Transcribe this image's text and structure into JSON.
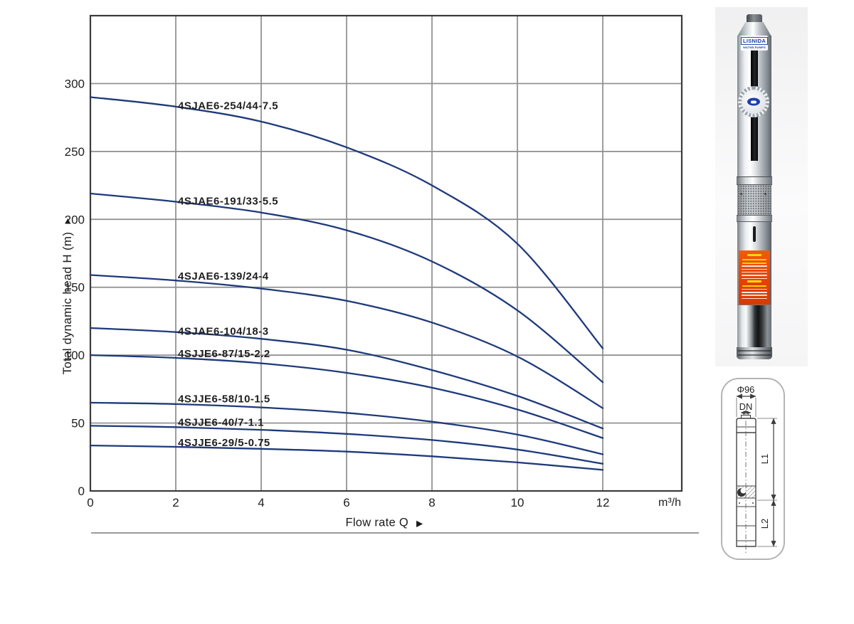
{
  "chart_data": {
    "type": "line",
    "title": "",
    "xlabel": "Flow rate Q",
    "xlabel_arrow": "▶",
    "ylabel": "Total dynamic head H (m)",
    "ylabel_arrow": "▲",
    "x_unit": "m³/h",
    "xlim": [
      0,
      13.85
    ],
    "ylim": [
      0,
      350
    ],
    "xticks": [
      0,
      2,
      4,
      6,
      8,
      10,
      12
    ],
    "yticks": [
      0,
      50,
      100,
      150,
      200,
      250,
      300
    ],
    "grid": true,
    "legend_position": "inline-labels",
    "x": [
      0,
      2,
      4,
      6,
      8,
      10,
      12
    ],
    "series": [
      {
        "name": "4SJAE6-254/44-7.5",
        "values": [
          290,
          283,
          272,
          253,
          225,
          182,
          105
        ],
        "label_q": 2.05,
        "label_h": 281
      },
      {
        "name": "4SJAE6-191/33-5.5",
        "values": [
          219,
          213,
          205,
          192,
          169,
          133,
          80
        ],
        "label_q": 2.05,
        "label_h": 211
      },
      {
        "name": "4SJAE6-139/24-4",
        "values": [
          159,
          155,
          149,
          140,
          124,
          99,
          61
        ],
        "label_q": 2.05,
        "label_h": 155.5
      },
      {
        "name": "4SJAE6-104/18-3",
        "values": [
          120,
          117,
          112,
          104,
          89,
          70,
          46
        ],
        "label_q": 2.05,
        "label_h": 115
      },
      {
        "name": "4SJJE6-87/15-2.2",
        "values": [
          100,
          98,
          94,
          87,
          76,
          60,
          39
        ],
        "label_q": 2.05,
        "label_h": 98.5
      },
      {
        "name": "4SJJE6-58/10-1.5",
        "values": [
          65,
          64,
          61.5,
          57.5,
          51,
          41.5,
          27
        ],
        "label_q": 2.05,
        "label_h": 65.3
      },
      {
        "name": "4SJJE6-40/7-1.1",
        "values": [
          48,
          47,
          45,
          42,
          37.5,
          30.5,
          20
        ],
        "label_q": 2.05,
        "label_h": 48
      },
      {
        "name": "4SJJE6-29/5-0.75",
        "values": [
          33.5,
          32.5,
          31,
          29,
          25.5,
          21,
          15.5
        ],
        "label_q": 2.05,
        "label_h": 33
      }
    ],
    "colors": {
      "curve": "#1e3a7a",
      "grid": "#8d8d8d",
      "border": "#3b3b3b",
      "text": "#1f1f1f",
      "underline": "#9b9b9b"
    }
  },
  "pump_photo": {
    "brand": "LISNIDA",
    "tagline": "WATER PUMPS"
  },
  "dimension_diagram": {
    "diameter": "Φ96",
    "outlet": "DN",
    "length1": "L1",
    "length2": "L2"
  }
}
